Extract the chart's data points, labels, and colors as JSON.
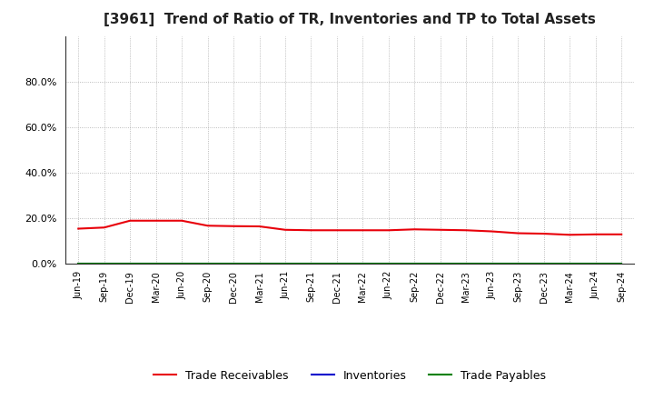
{
  "title": "[3961]  Trend of Ratio of TR, Inventories and TP to Total Assets",
  "x_labels": [
    "Jun-19",
    "Sep-19",
    "Dec-19",
    "Mar-20",
    "Jun-20",
    "Sep-20",
    "Dec-20",
    "Mar-21",
    "Jun-21",
    "Sep-21",
    "Dec-21",
    "Mar-22",
    "Jun-22",
    "Sep-22",
    "Dec-22",
    "Mar-23",
    "Jun-23",
    "Sep-23",
    "Dec-23",
    "Mar-24",
    "Jun-24",
    "Sep-24"
  ],
  "trade_receivables": [
    0.155,
    0.16,
    0.19,
    0.19,
    0.19,
    0.168,
    0.166,
    0.165,
    0.15,
    0.148,
    0.148,
    0.148,
    0.148,
    0.152,
    0.15,
    0.148,
    0.143,
    0.135,
    0.133,
    0.128,
    0.13,
    0.13
  ],
  "inventories": [
    0.001,
    0.001,
    0.001,
    0.001,
    0.001,
    0.001,
    0.001,
    0.001,
    0.001,
    0.001,
    0.001,
    0.001,
    0.001,
    0.001,
    0.001,
    0.001,
    0.001,
    0.001,
    0.001,
    0.001,
    0.001,
    0.001
  ],
  "trade_payables": [
    0.001,
    0.001,
    0.001,
    0.001,
    0.001,
    0.001,
    0.001,
    0.001,
    0.001,
    0.001,
    0.001,
    0.001,
    0.001,
    0.001,
    0.001,
    0.001,
    0.001,
    0.001,
    0.001,
    0.001,
    0.001,
    0.001
  ],
  "tr_color": "#e8000a",
  "inv_color": "#0000cc",
  "tp_color": "#008000",
  "ylim": [
    0.0,
    1.0
  ],
  "yticks": [
    0.0,
    0.2,
    0.4,
    0.6,
    0.8
  ],
  "bg_color": "#ffffff",
  "plot_bg_color": "#ffffff",
  "grid_color": "#aaaaaa",
  "title_fontsize": 11,
  "legend_labels": [
    "Trade Receivables",
    "Inventories",
    "Trade Payables"
  ]
}
